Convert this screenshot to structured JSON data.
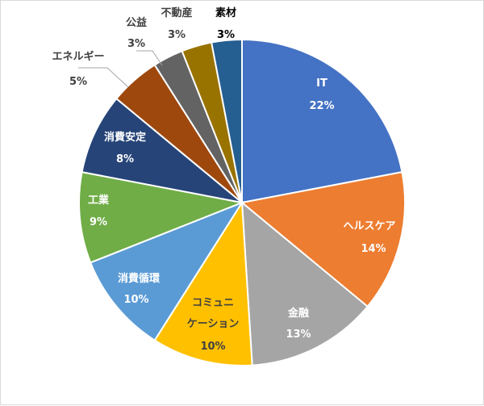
{
  "chart_data": {
    "type": "pie",
    "title": "",
    "colors": {
      "IT": "#4472c4",
      "healthcare": "#ed7d31",
      "finance": "#a5a5a5",
      "communication": "#ffc000",
      "consumer_cyclical": "#5b9bd5",
      "industrials": "#70ad47",
      "consumer_staples": "#264478",
      "energy": "#9e480e",
      "utilities": "#636363",
      "real_estate": "#997300",
      "materials": "#255e91",
      "label_dark": "#404040",
      "label_light": "#ffffff",
      "leader_line": "#a6a6a6"
    },
    "slices": [
      {
        "label": "IT",
        "value": 22,
        "pct": "22%",
        "color": "#4472c4"
      },
      {
        "label": "ヘルスケア",
        "value": 14,
        "pct": "14%",
        "color": "#ed7d31"
      },
      {
        "label": "金融",
        "value": 13,
        "pct": "13%",
        "color": "#a5a5a5"
      },
      {
        "label": "コミュニケーション",
        "label_line1": "コミュニ",
        "label_line2": "ケーション",
        "value": 10,
        "pct": "10%",
        "color": "#ffc000"
      },
      {
        "label": "消費循環",
        "value": 10,
        "pct": "10%",
        "color": "#5b9bd5"
      },
      {
        "label": "工業",
        "value": 9,
        "pct": "9%",
        "color": "#70ad47"
      },
      {
        "label": "消費安定",
        "value": 8,
        "pct": "8%",
        "color": "#264478"
      },
      {
        "label": "エネルギー",
        "value": 5,
        "pct": "5%",
        "color": "#9e480e"
      },
      {
        "label": "公益",
        "value": 3,
        "pct": "3%",
        "color": "#636363"
      },
      {
        "label": "不動産",
        "value": 3,
        "pct": "3%",
        "color": "#997300"
      },
      {
        "label": "素材",
        "value": 3,
        "pct": "3%",
        "color": "#255e91"
      }
    ]
  }
}
